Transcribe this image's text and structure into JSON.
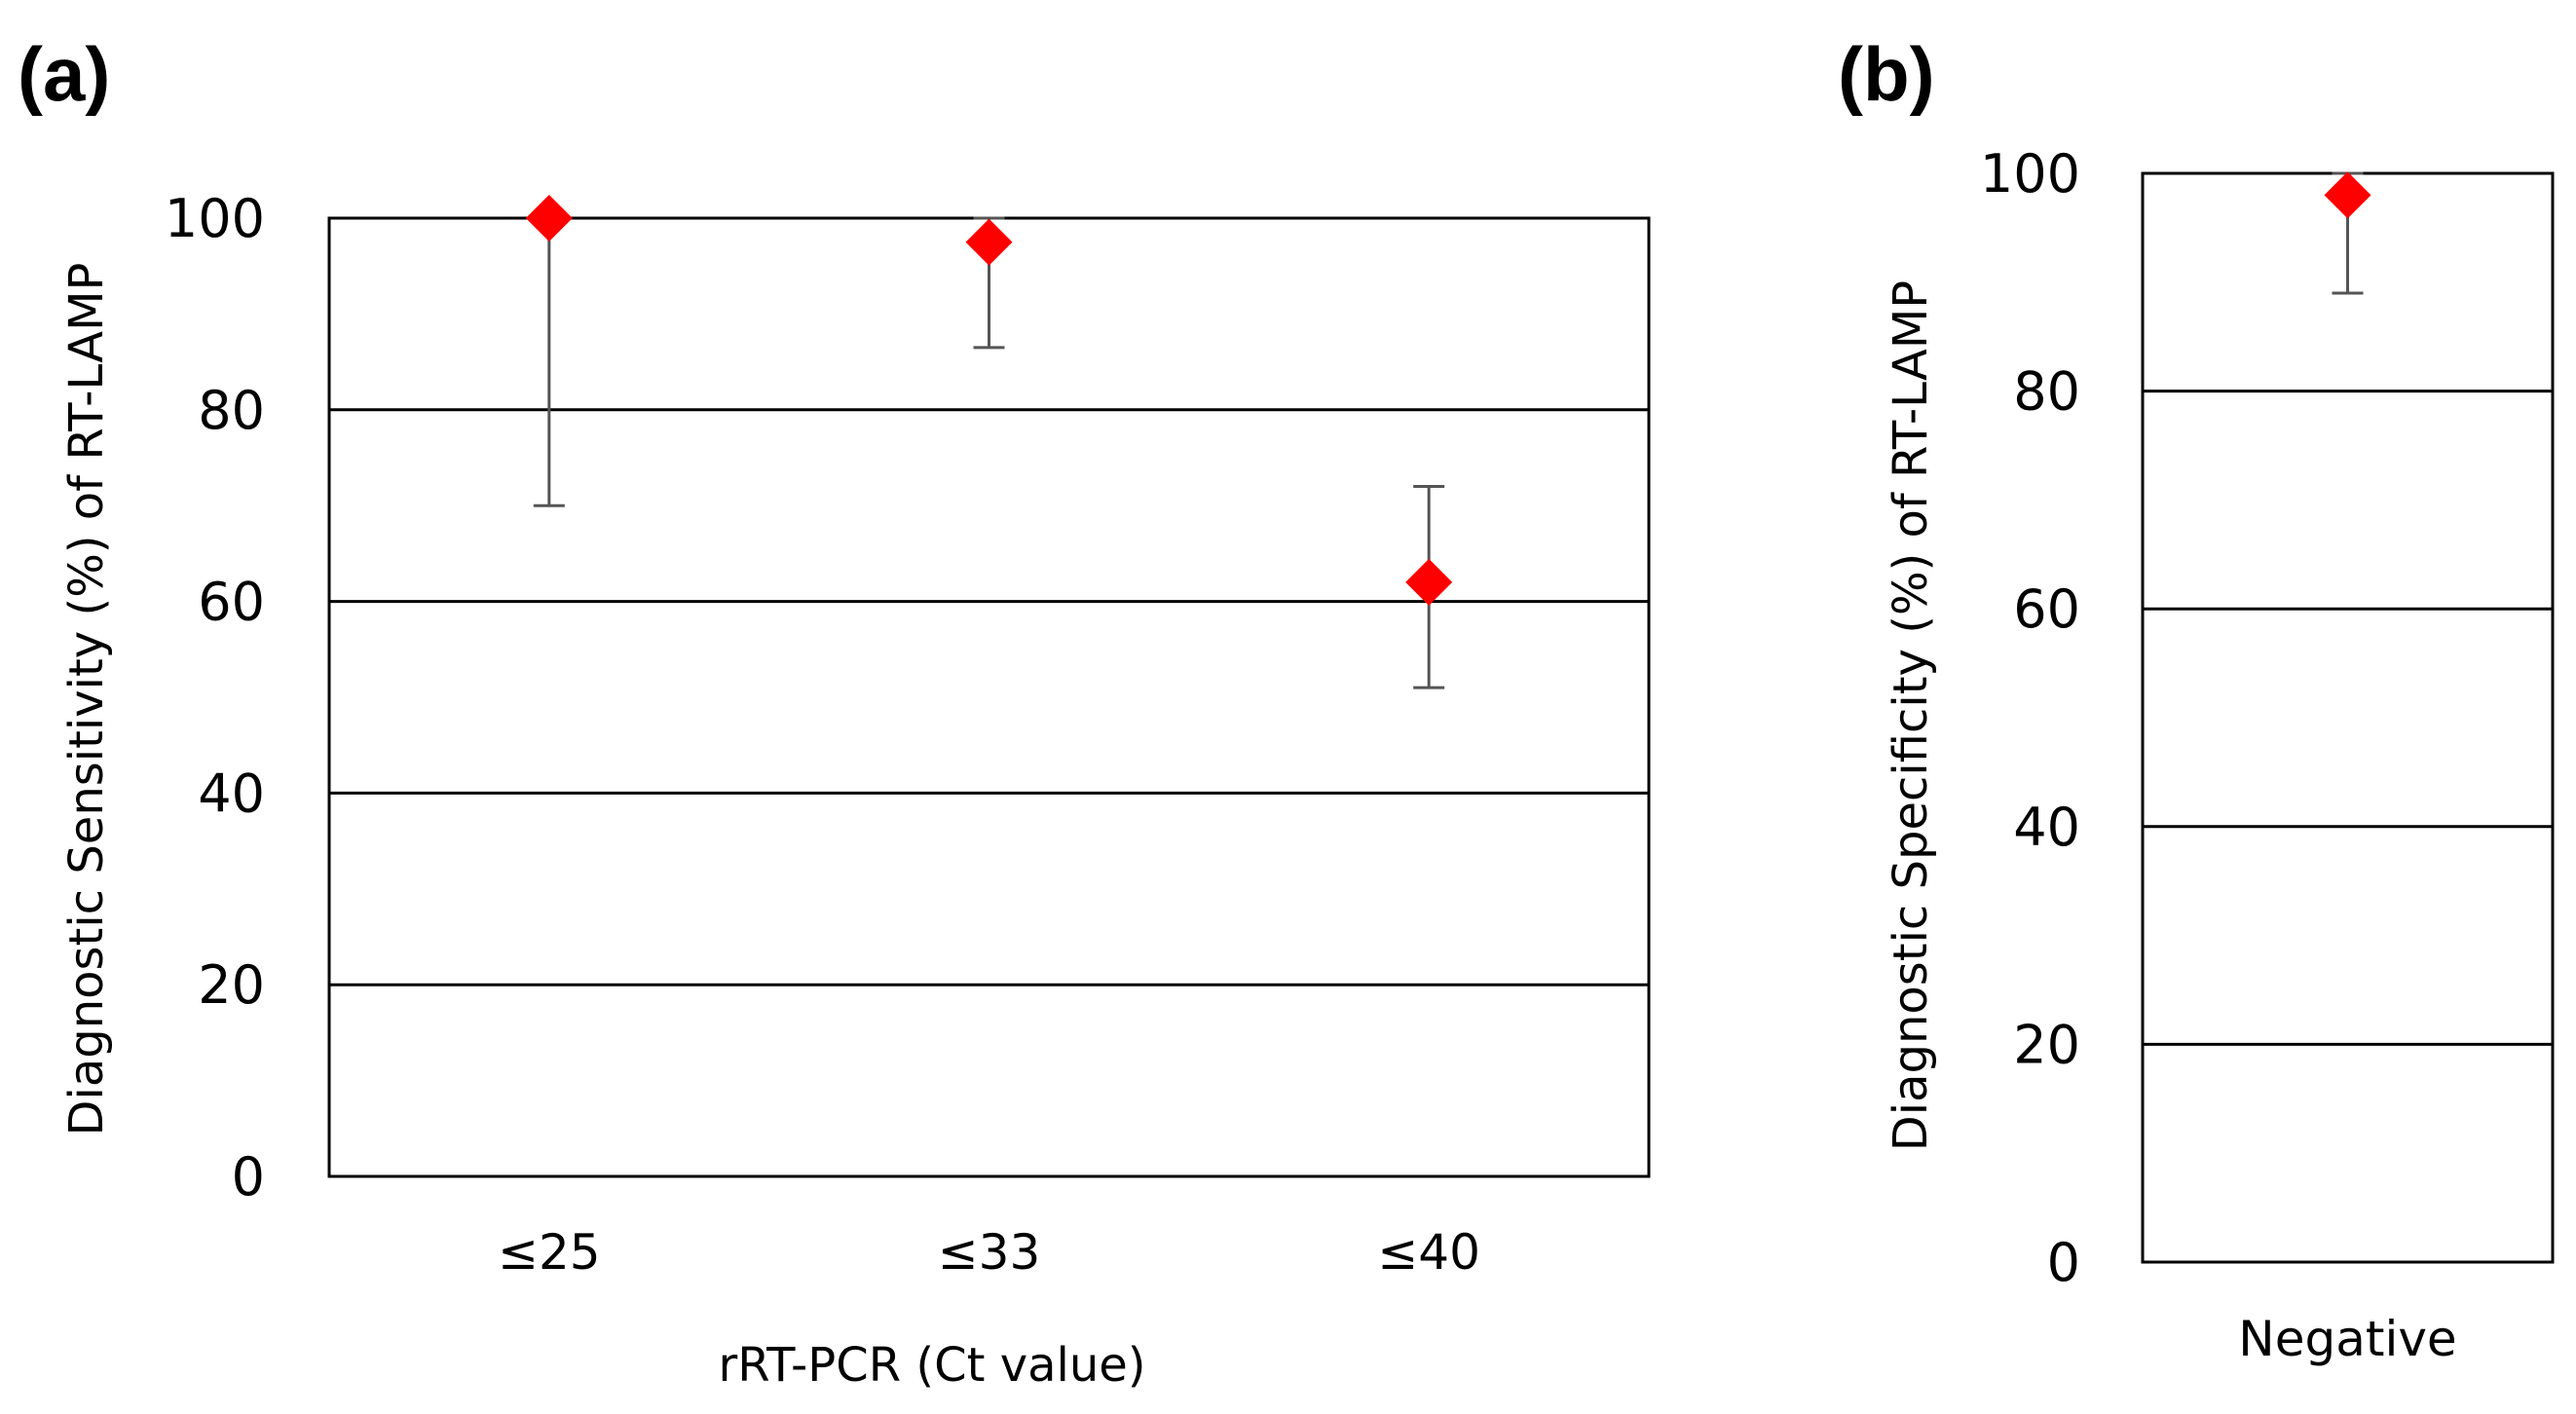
{
  "chart_data": [
    {
      "type": "scatter",
      "panel_label": "(a)",
      "categories": [
        "≤25",
        "≤33",
        "≤40"
      ],
      "series": [
        {
          "name": "Diagnostic Sensitivity",
          "values": [
            100,
            97.5,
            62
          ],
          "error_low": [
            70,
            86.5,
            51
          ],
          "error_high": [
            100,
            100,
            72
          ]
        }
      ],
      "xlabel": "rRT-PCR (Ct value)",
      "ylabel": "Diagnostic Sensitivity (%) of RT-LAMP",
      "ylim": [
        0,
        100
      ],
      "yticks": [
        0,
        20,
        40,
        60,
        80,
        100
      ],
      "grid": true,
      "marker_color": "#ff0000"
    },
    {
      "type": "scatter",
      "panel_label": "(b)",
      "categories": [
        "Negative"
      ],
      "series": [
        {
          "name": "Diagnostic Specificity",
          "values": [
            98
          ],
          "error_low": [
            89
          ],
          "error_high": [
            100
          ]
        }
      ],
      "xlabel": "",
      "ylabel": "Diagnostic Specificity (%) of RT-LAMP",
      "ylim": [
        0,
        100
      ],
      "yticks": [
        0,
        20,
        40,
        60,
        80,
        100
      ],
      "grid": true,
      "marker_color": "#ff0000"
    }
  ]
}
